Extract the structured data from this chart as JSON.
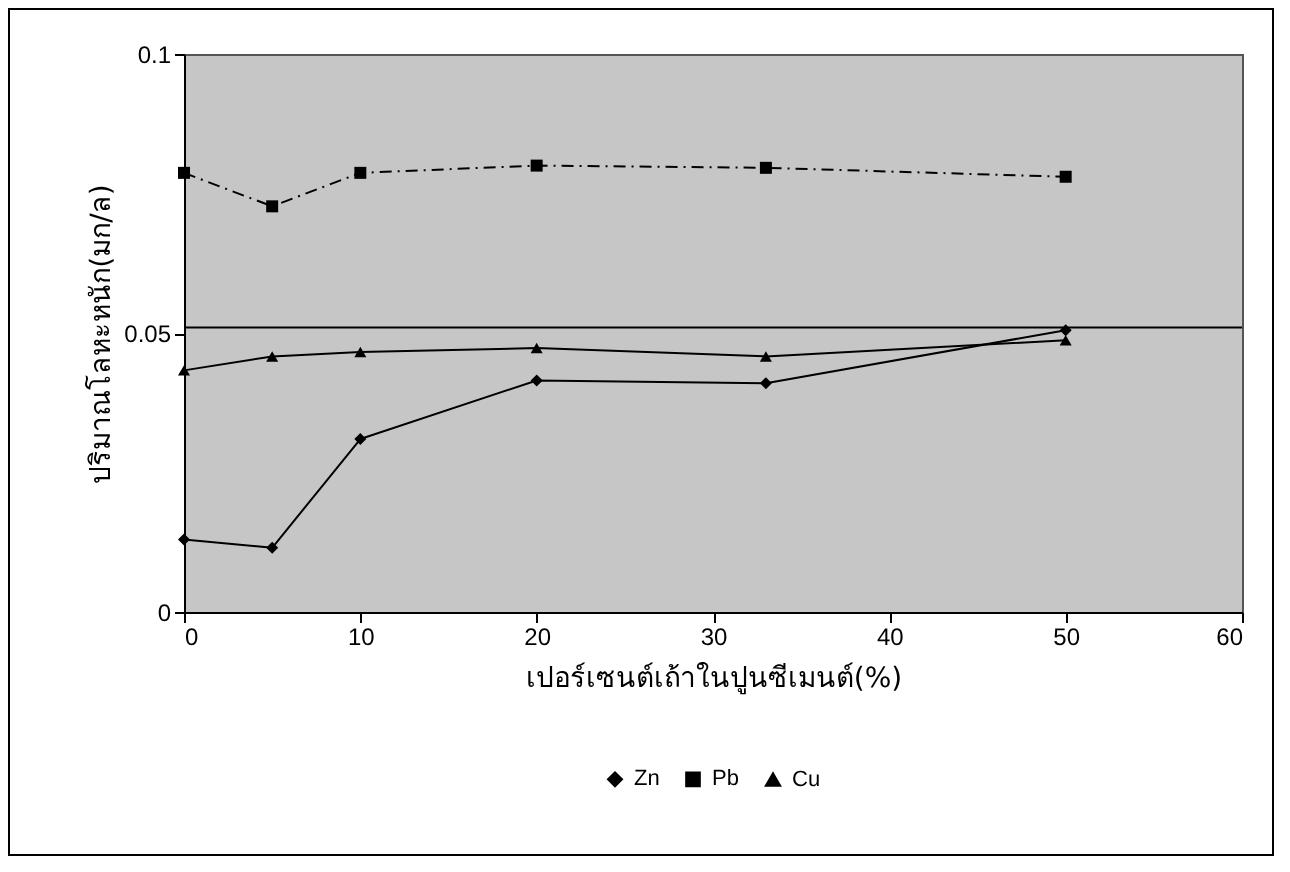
{
  "chart_data": {
    "type": "line",
    "xlabel": "เปอร์เซนต์เถ้าในปูนซีเมนต์(%)",
    "ylabel": "ปริมาณโลหะหนัก(มก/ล)",
    "x": [
      0,
      5,
      10,
      20,
      33,
      50
    ],
    "series": [
      {
        "name": "Zn",
        "color": "#000000",
        "marker": "diamond",
        "line_style": "solid",
        "values": [
          0.013,
          0.0115,
          0.031,
          0.0415,
          0.041,
          0.0505
        ]
      },
      {
        "name": "Pb",
        "color": "#000000",
        "marker": "square",
        "line_style": "dashed",
        "values": [
          0.0787,
          0.0727,
          0.0787,
          0.08,
          0.0796,
          0.078
        ]
      },
      {
        "name": "Cu",
        "color": "#000000",
        "marker": "triangle",
        "line_style": "solid",
        "values": [
          0.0433,
          0.0458,
          0.0466,
          0.0473,
          0.0458,
          0.0487
        ]
      }
    ],
    "xlim": [
      0,
      60
    ],
    "xticks": [
      0,
      10,
      20,
      30,
      40,
      50,
      60
    ],
    "ylim": [
      0,
      0.1
    ],
    "yticks": [
      0,
      0.05,
      0.1
    ],
    "ref_lines": [
      {
        "axis": "y",
        "value": 0.051,
        "color": "#000000"
      }
    ],
    "grid": false,
    "legend": "bottom"
  }
}
